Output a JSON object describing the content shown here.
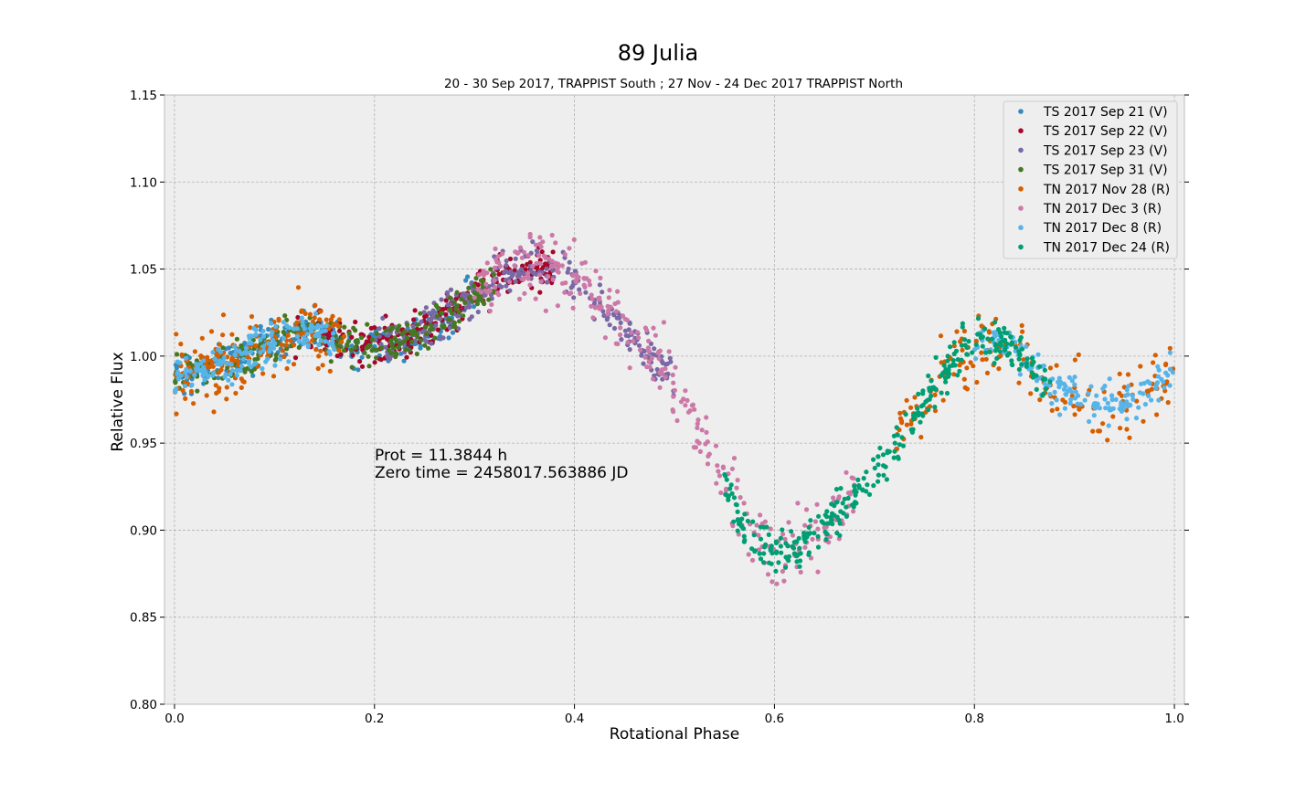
{
  "chart_data": {
    "type": "scatter",
    "title": "89 Julia",
    "subtitle": "20 - 30 Sep 2017, TRAPPIST South ; 27 Nov - 24 Dec 2017 TRAPPIST North",
    "xlabel": "Rotational Phase",
    "ylabel": "Relative Flux",
    "xlim": [
      -0.01,
      1.01
    ],
    "ylim": [
      0.8,
      1.15
    ],
    "xticks": [
      "0.0",
      "0.2",
      "0.4",
      "0.6",
      "0.8",
      "1.0"
    ],
    "yticks": [
      "0.80",
      "0.85",
      "0.90",
      "0.95",
      "1.00",
      "1.05",
      "1.10",
      "1.15"
    ],
    "grid": true,
    "legend_position": "top-right",
    "annotation": [
      "Prot = 11.3844 h",
      "Zero time = 2458017.563886 JD"
    ],
    "light_curve_trend": {
      "phase": [
        0.0,
        0.05,
        0.1,
        0.14,
        0.18,
        0.22,
        0.26,
        0.3,
        0.34,
        0.37,
        0.4,
        0.43,
        0.46,
        0.5,
        0.54,
        0.57,
        0.6,
        0.63,
        0.67,
        0.71,
        0.75,
        0.8,
        0.84,
        0.88,
        0.92,
        0.96,
        1.0
      ],
      "flux": [
        0.99,
        0.995,
        1.008,
        1.015,
        1.005,
        1.008,
        1.018,
        1.035,
        1.05,
        1.052,
        1.045,
        1.03,
        1.01,
        0.985,
        0.94,
        0.9,
        0.885,
        0.893,
        0.915,
        0.94,
        0.975,
        1.01,
        1.005,
        0.98,
        0.975,
        0.975,
        0.99
      ]
    },
    "series": [
      {
        "name": "TS 2017 Sep 21  (V)",
        "color": "#348ABD",
        "phase_range": [
          0.0,
          0.3
        ],
        "points": 260
      },
      {
        "name": "TS 2017 Sep 22  (V)",
        "color": "#A60628",
        "phase_range": [
          0.12,
          0.38
        ],
        "points": 260
      },
      {
        "name": "TS 2017 Sep 23  (V)",
        "color": "#7A68A6",
        "phase_range": [
          0.2,
          0.5
        ],
        "points": 260
      },
      {
        "name": "TS 2017 Sep 31  (V)",
        "color": "#467821",
        "phase_range": [
          0.0,
          0.32
        ],
        "points": 260
      },
      {
        "name": "TN 2017 Nov 28  (R)",
        "color": "#D55E00",
        "phase_range": [
          0.0,
          0.17
        ],
        "phase_range2": [
          0.72,
          1.0
        ],
        "points": 330
      },
      {
        "name": "TN 2017 Dec 3  (R)",
        "color": "#CC79A7",
        "phase_range": [
          0.3,
          0.68
        ],
        "points": 300
      },
      {
        "name": "TN 2017 Dec 8  (R)",
        "color": "#56B4E9",
        "phase_range": [
          0.0,
          0.16
        ],
        "phase_range2": [
          0.8,
          1.0
        ],
        "points": 330
      },
      {
        "name": "TN 2017 Dec 24  (R)",
        "color": "#009E73",
        "phase_range": [
          0.55,
          0.88
        ],
        "points": 330
      }
    ]
  }
}
